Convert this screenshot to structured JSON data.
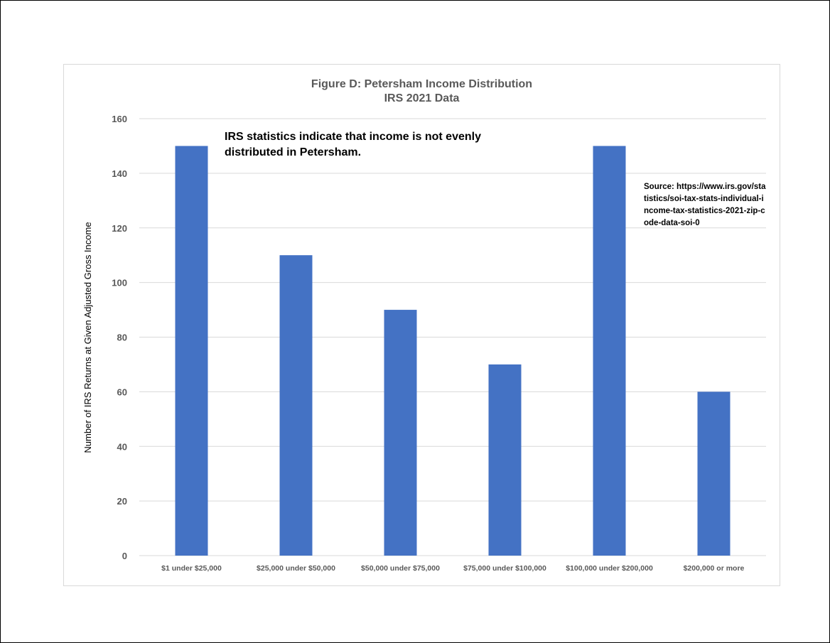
{
  "chart_data": {
    "type": "bar",
    "title": "Figure D: Petersham Income Distribution",
    "subtitle": "IRS 2021 Data",
    "xlabel": "",
    "ylabel": "Number of IRS Returns at Given Adjusted Gross Income",
    "categories": [
      "$1 under $25,000",
      "$25,000 under $50,000",
      "$50,000 under $75,000",
      "$75,000 under $100,000",
      "$100,000 under $200,000",
      "$200,000 or more"
    ],
    "values": [
      150,
      110,
      90,
      70,
      150,
      60
    ],
    "ylim": [
      0,
      160
    ],
    "yticks": [
      "0",
      "20",
      "40",
      "60",
      "80",
      "100",
      "120",
      "140",
      "160"
    ],
    "grid": true,
    "bar_color": "#4472c4",
    "annotations": {
      "main": "IRS statistics indicate that income is not evenly distributed in Petersham.",
      "source": "Source: https://www.irs.gov/statistics/soi-tax-stats-individual-income-tax-statistics-2021-zip-code-data-soi-0"
    }
  }
}
